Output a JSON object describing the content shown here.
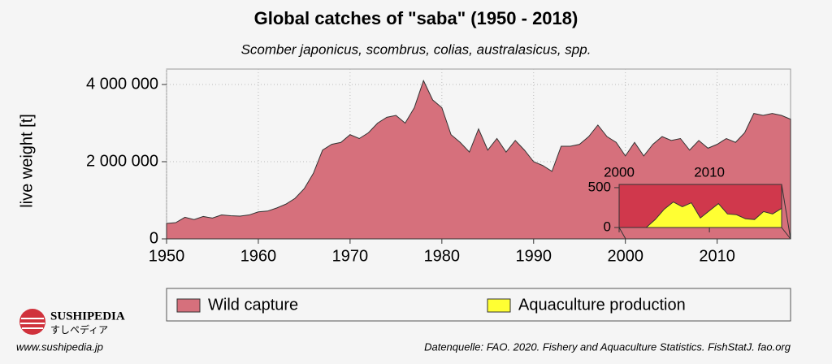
{
  "chart_data": [
    {
      "type": "area",
      "title": "Global catches of \"saba\" (1950 - 2018)",
      "subtitle": "Scomber japonicus, scombrus, colias, australasicus, spp.",
      "y_label": "live weight [t]",
      "source": "Datenquelle: FAO. 2020. Fishery and Aquaculture Statistics. FishStatJ. fao.org",
      "x": [
        1950,
        1951,
        1952,
        1953,
        1954,
        1955,
        1956,
        1957,
        1958,
        1959,
        1960,
        1961,
        1962,
        1963,
        1964,
        1965,
        1966,
        1967,
        1968,
        1969,
        1970,
        1971,
        1972,
        1973,
        1974,
        1975,
        1976,
        1977,
        1978,
        1979,
        1980,
        1981,
        1982,
        1983,
        1984,
        1985,
        1986,
        1987,
        1988,
        1989,
        1990,
        1991,
        1992,
        1993,
        1994,
        1995,
        1996,
        1997,
        1998,
        1999,
        2000,
        2001,
        2002,
        2003,
        2004,
        2005,
        2006,
        2007,
        2008,
        2009,
        2010,
        2011,
        2012,
        2013,
        2014,
        2015,
        2016,
        2017,
        2018
      ],
      "series": [
        {
          "name": "Wild capture",
          "color": "#d6707c",
          "values": [
            400000,
            420000,
            560000,
            500000,
            580000,
            540000,
            620000,
            600000,
            590000,
            620000,
            700000,
            720000,
            800000,
            900000,
            1050000,
            1300000,
            1700000,
            2300000,
            2450000,
            2500000,
            2700000,
            2600000,
            2750000,
            3000000,
            3150000,
            3200000,
            3000000,
            3400000,
            4100000,
            3600000,
            3400000,
            2700000,
            2500000,
            2250000,
            2850000,
            2300000,
            2600000,
            2250000,
            2550000,
            2300000,
            2000000,
            1900000,
            1750000,
            2400000,
            2400000,
            2450000,
            2650000,
            2950000,
            2650000,
            2500000,
            2150000,
            2500000,
            2150000,
            2450000,
            2650000,
            2550000,
            2600000,
            2300000,
            2550000,
            2350000,
            2450000,
            2600000,
            2500000,
            2750000,
            3250000,
            3200000,
            3250000,
            3200000,
            3100000
          ]
        }
      ],
      "xlim": [
        1950,
        2018
      ],
      "ylim": [
        0,
        4400000
      ],
      "xticks": [
        1950,
        1960,
        1970,
        1980,
        1990,
        2000,
        2010
      ],
      "yticks": [
        0,
        {
          "value": 2000000,
          "label": "2 000 000"
        },
        {
          "value": 4000000,
          "label": "4 000 000"
        }
      ],
      "grid": true
    },
    {
      "type": "area",
      "x": [
        2000,
        2001,
        2002,
        2003,
        2004,
        2005,
        2006,
        2007,
        2008,
        2009,
        2010,
        2011,
        2012,
        2013,
        2014,
        2015,
        2016,
        2017,
        2018
      ],
      "series": [
        {
          "name": "Aquaculture production",
          "color": "#ffff33",
          "values": [
            0,
            0,
            0,
            0,
            100,
            230,
            320,
            260,
            310,
            120,
            210,
            300,
            170,
            160,
            110,
            100,
            200,
            170,
            240
          ]
        }
      ],
      "xlim": [
        2000,
        2018
      ],
      "ylim": [
        0,
        540
      ],
      "xticks": [
        2000,
        2010
      ],
      "yticks": [
        0,
        500
      ]
    }
  ],
  "logo": {
    "name": "SUSHIPEDIA",
    "subtitle": "すしペディア",
    "url": "www.sushipedia.jp"
  }
}
